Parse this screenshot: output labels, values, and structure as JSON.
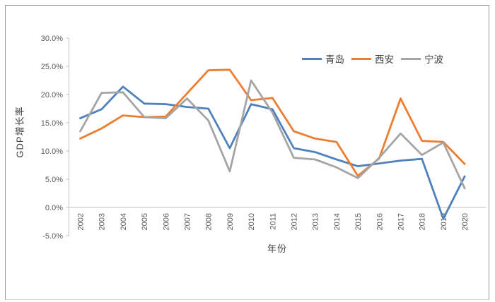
{
  "panel": {
    "background": "#ffffff",
    "border_color": "#979797"
  },
  "chart_data": {
    "type": "line",
    "title": "",
    "xlabel": "年份",
    "ylabel": "GDP增长率",
    "x": [
      "2002",
      "2003",
      "2004",
      "2005",
      "2006",
      "2007",
      "2008",
      "2009",
      "2010",
      "2011",
      "2012",
      "2013",
      "2014",
      "2015",
      "2016",
      "2017",
      "2018",
      "2019",
      "2020"
    ],
    "series": [
      {
        "name": "青岛",
        "color": "#4f81bd",
        "values": [
          15.8,
          17.4,
          21.4,
          18.4,
          18.3,
          17.8,
          17.5,
          10.5,
          18.3,
          17.4,
          10.5,
          9.8,
          8.5,
          7.3,
          7.8,
          8.3,
          8.6,
          -2.0,
          5.5
        ]
      },
      {
        "name": "西安",
        "color": "#ed7d31",
        "values": [
          12.2,
          14.0,
          16.3,
          16.0,
          16.1,
          20.2,
          24.3,
          24.4,
          19.0,
          19.4,
          13.5,
          12.2,
          11.6,
          5.6,
          8.7,
          19.3,
          11.8,
          11.6,
          7.7
        ]
      },
      {
        "name": "宁波",
        "color": "#a5a5a5",
        "values": [
          13.5,
          20.3,
          20.4,
          16.0,
          15.8,
          19.3,
          15.4,
          6.4,
          22.5,
          16.8,
          8.8,
          8.5,
          7.1,
          5.2,
          8.8,
          13.1,
          9.3,
          11.5,
          3.4
        ]
      }
    ],
    "ylim": [
      -5,
      30
    ],
    "ytick_step": 5,
    "ytick_labels": [
      "30.0%",
      "25.0%",
      "20.0%",
      "15.0%",
      "10.0%",
      "5.0%",
      "0.0%",
      "-5.0%"
    ],
    "grid": false,
    "legend_position": "top-right",
    "axis_color": "#bfbfbf",
    "tick_label_color": "#595959"
  }
}
